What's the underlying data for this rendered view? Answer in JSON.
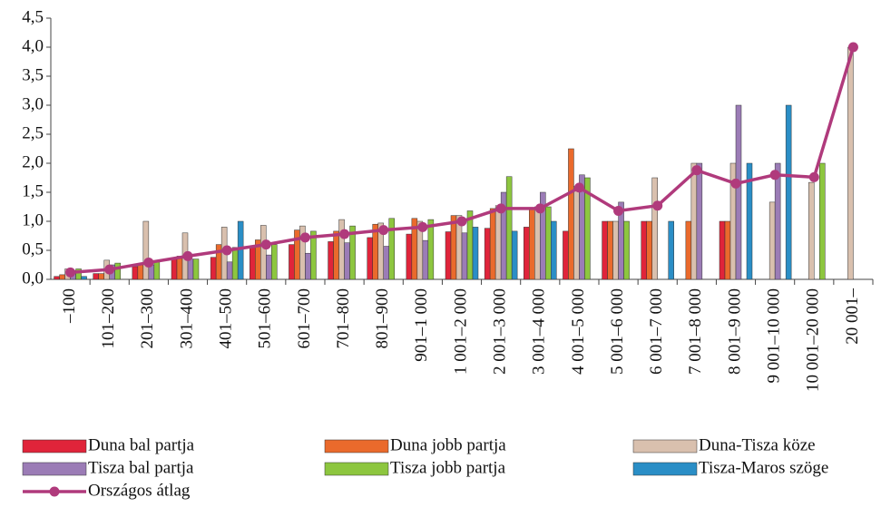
{
  "chart_data": {
    "type": "bar_line",
    "categories": [
      "–100",
      "101–200",
      "201–300",
      "301–400",
      "401–500",
      "501–600",
      "601–700",
      "701–800",
      "801–900",
      "901–1 000",
      "1 001–2 000",
      "2 001–3 000",
      "3 001–4 000",
      "4 001–5 000",
      "5 001–6 000",
      "6 001–7 000",
      "7 001–8 000",
      "8 001–9 000",
      "9 001–10 000",
      "10 001–20 000",
      "20 001–"
    ],
    "series": [
      {
        "name": "Duna bal partja",
        "color": "#e0243a",
        "values": [
          0.05,
          0.1,
          0.22,
          0.35,
          0.38,
          0.55,
          0.6,
          0.65,
          0.72,
          0.78,
          0.82,
          0.88,
          0.9,
          0.83,
          1.0,
          1.0,
          null,
          1.0,
          null,
          null,
          null
        ]
      },
      {
        "name": "Duna jobb partja",
        "color": "#ea6a2c",
        "values": [
          0.08,
          0.1,
          0.25,
          0.4,
          0.6,
          0.68,
          0.85,
          0.83,
          0.95,
          1.05,
          1.1,
          1.22,
          1.2,
          2.25,
          1.0,
          1.0,
          1.0,
          1.0,
          null,
          null,
          null
        ]
      },
      {
        "name": "Duna-Tisza köze",
        "color": "#d9c0ae",
        "values": [
          0.18,
          0.33,
          1.0,
          0.8,
          0.9,
          0.93,
          0.92,
          1.03,
          0.97,
          1.0,
          1.1,
          1.27,
          1.25,
          1.6,
          1.0,
          1.75,
          2.0,
          2.0,
          1.33,
          1.67,
          4.0
        ]
      },
      {
        "name": "Tisza bal partja",
        "color": "#9b7cb6",
        "values": [
          0.15,
          0.25,
          0.25,
          0.35,
          0.3,
          0.42,
          0.45,
          0.63,
          0.57,
          0.67,
          0.8,
          1.5,
          1.5,
          1.8,
          1.33,
          null,
          2.0,
          3.0,
          2.0,
          null,
          null
        ]
      },
      {
        "name": "Tisza jobb partja",
        "color": "#8dc63f",
        "values": [
          0.18,
          0.28,
          0.3,
          0.35,
          0.55,
          0.6,
          0.83,
          0.92,
          1.05,
          1.03,
          1.18,
          1.77,
          1.25,
          1.75,
          1.0,
          null,
          null,
          null,
          null,
          2.0,
          null
        ]
      },
      {
        "name": "Tisza-Maros szöge",
        "color": "#2a8ec6",
        "values": [
          0.05,
          null,
          null,
          null,
          1.0,
          null,
          null,
          null,
          null,
          null,
          0.9,
          0.83,
          1.0,
          null,
          null,
          1.0,
          null,
          2.0,
          3.0,
          null,
          null
        ]
      }
    ],
    "line": {
      "name": "Országos átlag",
      "color": "#b03a7c",
      "values": [
        0.12,
        0.17,
        0.29,
        0.4,
        0.5,
        0.6,
        0.72,
        0.78,
        0.85,
        0.9,
        1.0,
        1.22,
        1.22,
        1.58,
        1.18,
        1.27,
        1.88,
        1.65,
        1.8,
        1.76,
        4.0
      ]
    },
    "ylim": [
      0,
      4.5
    ],
    "yticks": [
      {
        "value": 0,
        "label": "0,0"
      },
      {
        "value": 0.5,
        "label": "0,5"
      },
      {
        "value": 1,
        "label": "1,0"
      },
      {
        "value": 1.5,
        "label": "1,5"
      },
      {
        "value": 2,
        "label": "2,0"
      },
      {
        "value": 2.5,
        "label": "2,5"
      },
      {
        "value": 3,
        "label": "3,0"
      },
      {
        "value": 3.5,
        "label": "3,5"
      },
      {
        "value": 4,
        "label": "4,0"
      },
      {
        "value": 4.5,
        "label": "4,5"
      }
    ]
  }
}
